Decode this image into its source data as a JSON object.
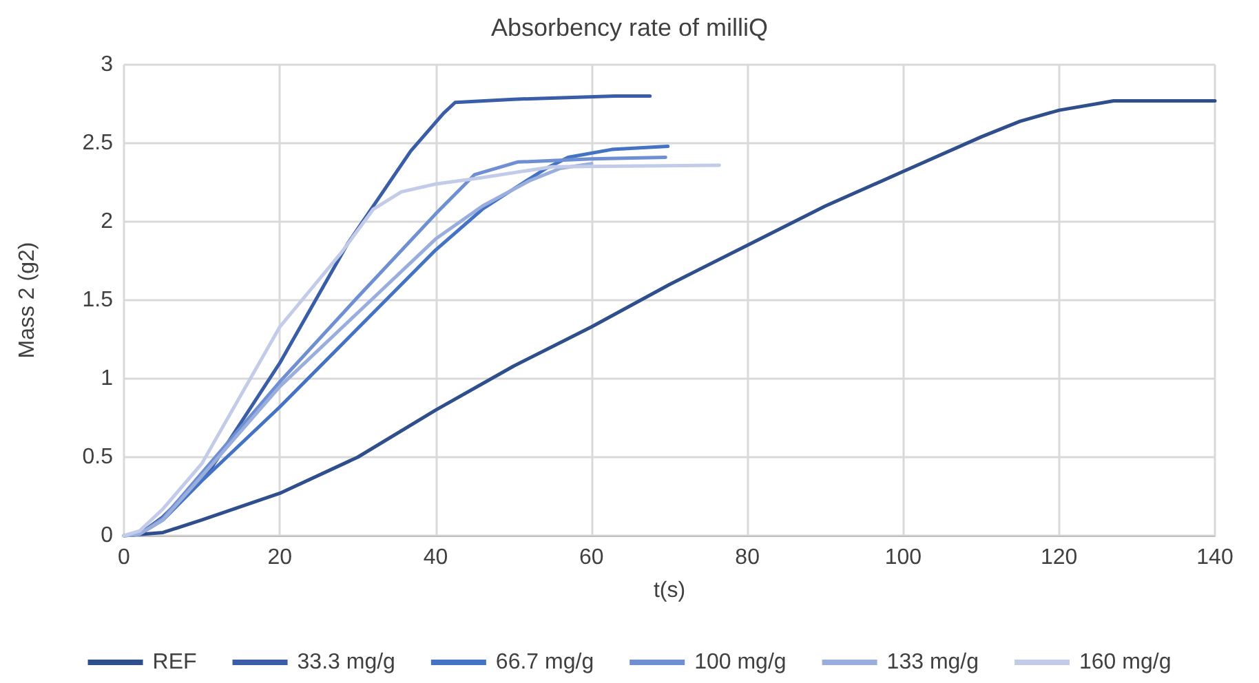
{
  "chart_data": {
    "type": "line",
    "title": "Absorbency rate of milliQ",
    "xlabel": "t(s)",
    "ylabel": "Mass 2 (g2)",
    "xlim": [
      0,
      140
    ],
    "xticks": [
      0,
      20,
      40,
      60,
      80,
      100,
      120,
      140
    ],
    "ylim": [
      0,
      3
    ],
    "yticks": [
      0,
      0.5,
      1,
      1.5,
      2,
      2.5,
      3
    ],
    "grid": true,
    "legend": "bottom",
    "marker": "none",
    "line_style": "solid",
    "series": [
      {
        "name": "REF",
        "color": "#2e4e8c",
        "x": [
          0,
          5,
          10,
          20,
          30,
          40,
          50,
          60,
          70,
          80,
          90,
          100,
          110,
          115,
          120,
          127,
          140
        ],
        "values": [
          0,
          0.02,
          0.1,
          0.27,
          0.5,
          0.8,
          1.08,
          1.33,
          1.6,
          1.85,
          2.1,
          2.32,
          2.54,
          2.64,
          2.71,
          2.77,
          2.77
        ]
      },
      {
        "name": "33.3 mg/g",
        "color": "#3a5da8",
        "x": [
          0,
          2,
          5,
          10.8,
          20,
          28.7,
          36.8,
          41,
          42.5,
          50,
          63,
          67.5
        ],
        "values": [
          0,
          0.01,
          0.12,
          0.4,
          1.1,
          1.86,
          2.45,
          2.69,
          2.76,
          2.78,
          2.8,
          2.8
        ]
      },
      {
        "name": "66.7 mg/g",
        "color": "#4472c4",
        "x": [
          0,
          2,
          5,
          10,
          20,
          30,
          40,
          46,
          51.3,
          54.2,
          57,
          62.6,
          69.8
        ],
        "values": [
          0,
          0.01,
          0.1,
          0.35,
          0.82,
          1.32,
          1.82,
          2.08,
          2.25,
          2.34,
          2.41,
          2.46,
          2.48
        ]
      },
      {
        "name": "100 mg/g",
        "color": "#6f8fd3",
        "x": [
          0,
          2,
          5,
          10,
          20,
          30,
          40,
          45,
          50.5,
          60,
          69.5
        ],
        "values": [
          0,
          0.01,
          0.11,
          0.4,
          0.98,
          1.52,
          2.05,
          2.3,
          2.38,
          2.4,
          2.41
        ]
      },
      {
        "name": "133 mg/g",
        "color": "#9aaedd",
        "x": [
          0,
          2,
          5,
          10,
          20,
          30,
          40,
          46,
          52,
          56,
          60
        ],
        "values": [
          0,
          0.01,
          0.1,
          0.38,
          0.95,
          1.42,
          1.89,
          2.1,
          2.26,
          2.34,
          2.37
        ]
      },
      {
        "name": "160 mg/g",
        "color": "#c2cce8",
        "x": [
          0,
          2,
          5,
          10,
          20,
          28,
          32,
          35.6,
          40,
          45.8,
          55,
          76.4
        ],
        "values": [
          0,
          0.03,
          0.17,
          0.46,
          1.33,
          1.81,
          2.08,
          2.19,
          2.24,
          2.28,
          2.35,
          2.36
        ]
      }
    ]
  }
}
